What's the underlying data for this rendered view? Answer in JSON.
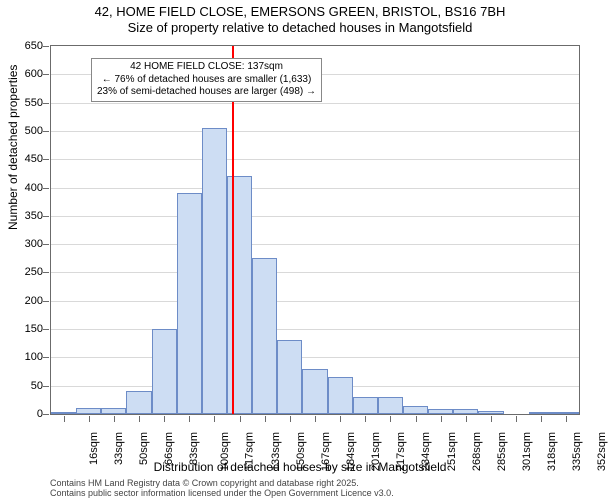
{
  "title_line1": "42, HOME FIELD CLOSE, EMERSONS GREEN, BRISTOL, BS16 7BH",
  "title_line2": "Size of property relative to detached houses in Mangotsfield",
  "y_axis_label": "Number of detached properties",
  "x_axis_label": "Distribution of detached houses by size in Mangotsfield",
  "chart": {
    "type": "histogram",
    "ylim": [
      0,
      650
    ],
    "ytick_step": 50,
    "background_color": "#ffffff",
    "grid_color": "#d9d9d9",
    "border_color": "#6b6b6b",
    "bar_fill": "#cdddf3",
    "bar_stroke": "#6d8cc7",
    "categories": [
      "16sqm",
      "33sqm",
      "50sqm",
      "66sqm",
      "83sqm",
      "100sqm",
      "117sqm",
      "133sqm",
      "150sqm",
      "167sqm",
      "184sqm",
      "201sqm",
      "217sqm",
      "234sqm",
      "251sqm",
      "268sqm",
      "285sqm",
      "301sqm",
      "318sqm",
      "335sqm",
      "352sqm"
    ],
    "values": [
      3,
      10,
      10,
      40,
      150,
      390,
      505,
      420,
      275,
      130,
      80,
      65,
      30,
      30,
      15,
      8,
      8,
      6,
      0,
      4,
      4
    ],
    "reference_line": {
      "x_index": 7.2,
      "color": "#ff0000",
      "width": 2
    },
    "annotation": {
      "lines": [
        "42 HOME FIELD CLOSE: 137sqm",
        "← 76% of detached houses are smaller (1,633)",
        "23% of semi-detached houses are larger (498) →"
      ],
      "border_color": "#888888",
      "background_color": "#ffffff",
      "fontsize": 10
    }
  },
  "credits_line1": "Contains HM Land Registry data © Crown copyright and database right 2025.",
  "credits_line2": "Contains public sector information licensed under the Open Government Licence v3.0.",
  "fonts": {
    "title": 13,
    "axis_label": 12,
    "tick": 11,
    "annotation": 10,
    "credits": 9
  },
  "colors": {
    "text": "#000000",
    "credits": "#444444",
    "ref_line": "#ff0000"
  }
}
